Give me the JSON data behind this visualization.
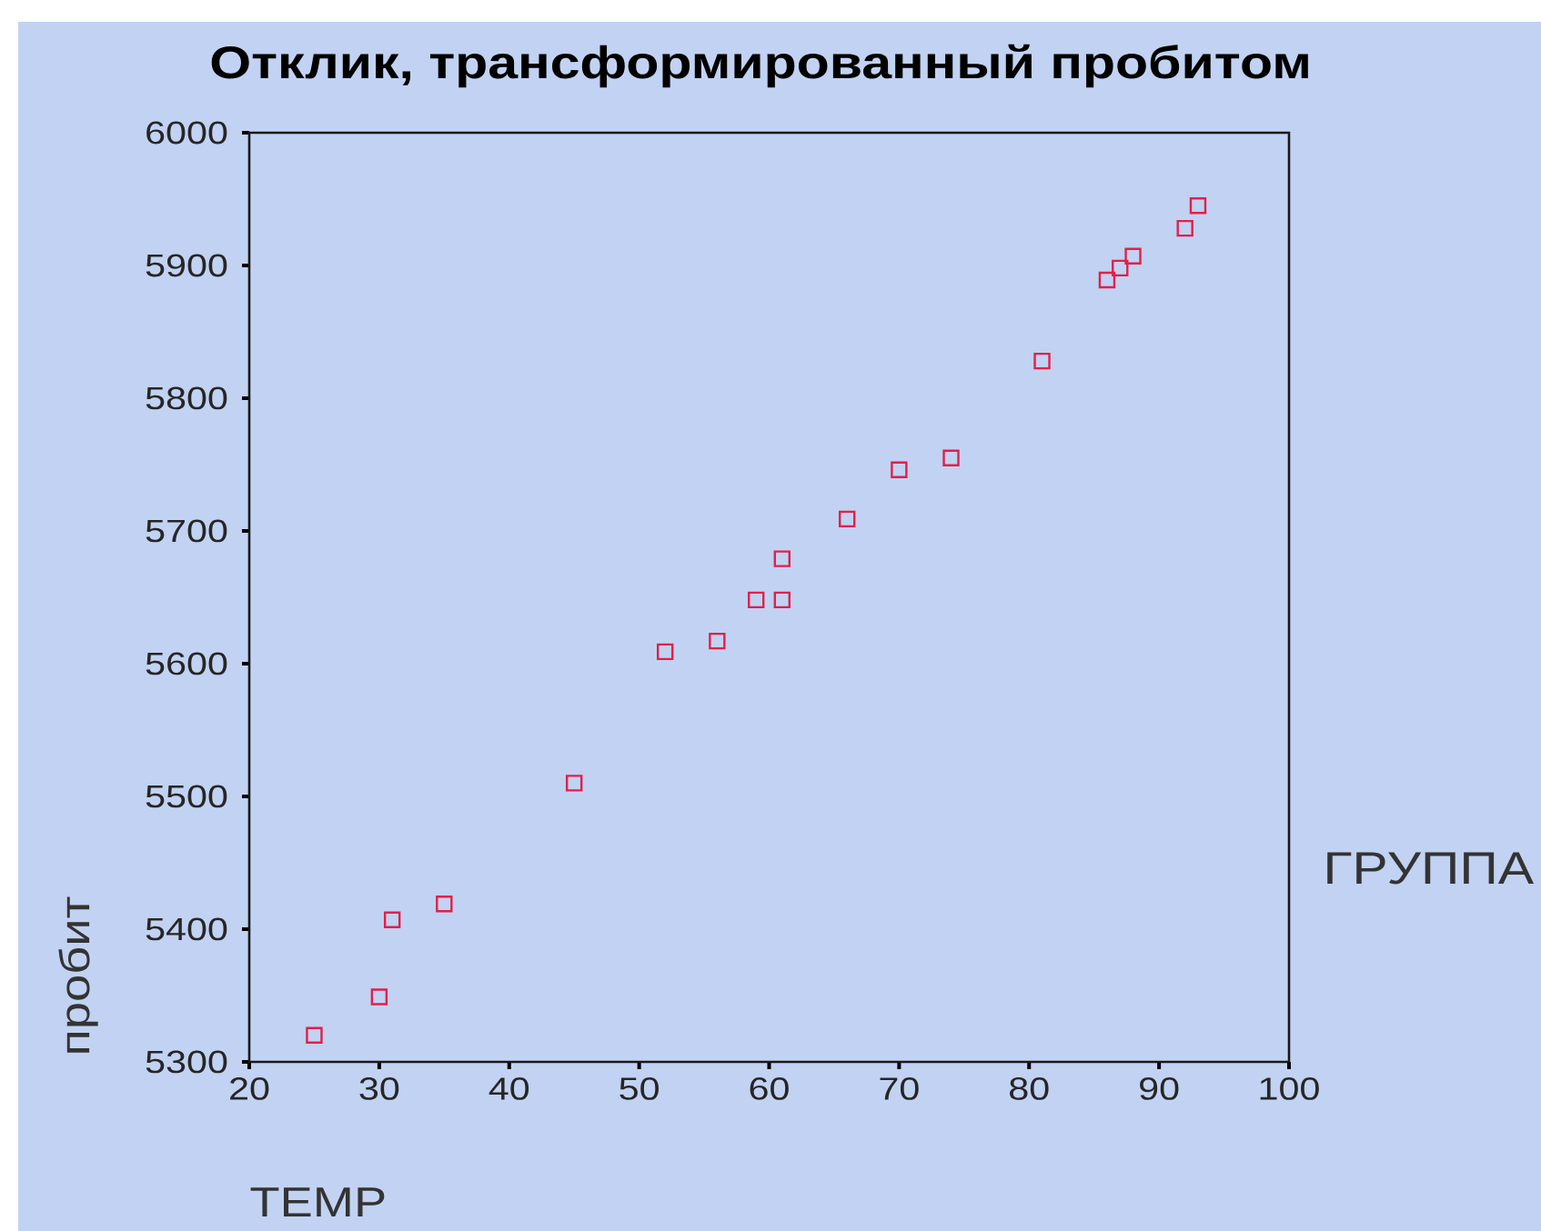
{
  "chart_data": {
    "type": "scatter",
    "title": "Отклик, трансформированный пробитом",
    "xlabel": "TEMP",
    "ylabel": "пробит",
    "legend_title": "ГРУППА",
    "x": [
      25,
      30,
      31,
      35,
      45,
      52,
      56,
      59,
      61,
      61,
      66,
      70,
      74,
      81,
      86,
      87,
      88,
      92,
      93
    ],
    "values": [
      5320,
      5349,
      5407,
      5419,
      5510,
      5609,
      5617,
      5648,
      5648,
      5679,
      5709,
      5746,
      5755,
      5828,
      5889,
      5898,
      5907,
      5928,
      5945
    ],
    "color": "#e0204a",
    "marker": "square",
    "xlim": [
      20,
      100
    ],
    "ylim": [
      5300,
      6000
    ],
    "xticks": [
      20,
      30,
      40,
      50,
      60,
      70,
      80,
      90,
      100
    ],
    "yticks": [
      5300,
      5400,
      5500,
      5600,
      5700,
      5800,
      5900,
      6000
    ]
  }
}
